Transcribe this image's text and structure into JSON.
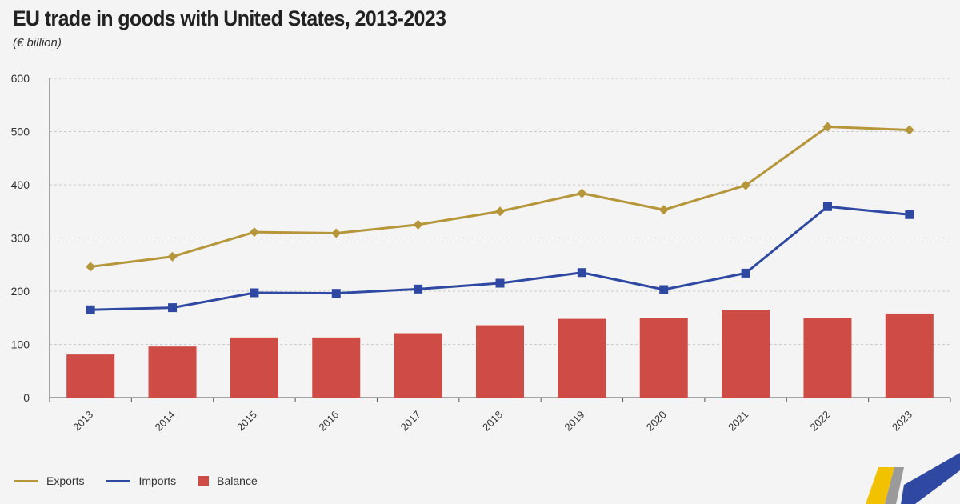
{
  "title": "EU trade in goods with United States, 2013-2023",
  "subtitle": "(€ billion)",
  "colors": {
    "exports": "#b5963a",
    "imports": "#2f49a2",
    "balance": "#cf4b45",
    "grid": "#c9c9c9",
    "axis": "#555555"
  },
  "chart_data": {
    "type": "bar",
    "categories": [
      "2013",
      "2014",
      "2015",
      "2016",
      "2017",
      "2018",
      "2019",
      "2020",
      "2021",
      "2022",
      "2023"
    ],
    "series": [
      {
        "name": "Exports",
        "type": "line",
        "marker": "diamond",
        "values": [
          246,
          265,
          311,
          309,
          325,
          350,
          384,
          353,
          399,
          509,
          503
        ]
      },
      {
        "name": "Imports",
        "type": "line",
        "marker": "square",
        "values": [
          165,
          169,
          197,
          196,
          204,
          215,
          235,
          203,
          234,
          359,
          344
        ]
      },
      {
        "name": "Balance",
        "type": "bar",
        "values": [
          81,
          96,
          113,
          113,
          121,
          136,
          148,
          150,
          165,
          149,
          158
        ]
      }
    ],
    "yticks": [
      0,
      100,
      200,
      300,
      400,
      500,
      600
    ],
    "ylim": [
      0,
      600
    ],
    "xlabel": "",
    "ylabel": "",
    "grid": true,
    "legend": "bottom-left"
  },
  "legend": [
    {
      "label": "Exports",
      "key": "exports",
      "shape": "line"
    },
    {
      "label": "Imports",
      "key": "imports",
      "shape": "line"
    },
    {
      "label": "Balance",
      "key": "balance",
      "shape": "box"
    }
  ]
}
